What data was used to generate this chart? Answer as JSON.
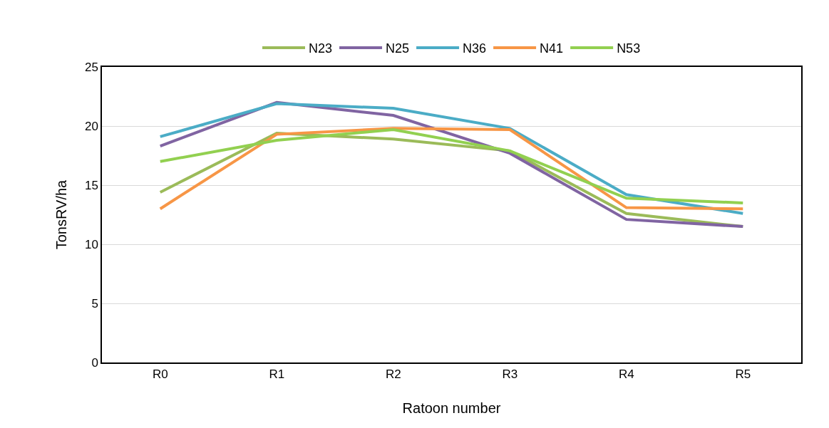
{
  "chart_data": {
    "type": "line",
    "xlabel": "Ratoon number",
    "ylabel": "TonsRV/ha",
    "categories": [
      "R0",
      "R1",
      "R2",
      "R3",
      "R4",
      "R5"
    ],
    "series": [
      {
        "name": "N23",
        "color": "#9bbb59",
        "values": [
          14.4,
          19.4,
          18.9,
          17.9,
          12.6,
          11.5
        ]
      },
      {
        "name": "N25",
        "color": "#8064a2",
        "values": [
          18.3,
          22.0,
          20.9,
          17.7,
          12.1,
          11.5
        ]
      },
      {
        "name": "N36",
        "color": "#4bacc6",
        "values": [
          19.1,
          21.9,
          21.5,
          19.8,
          14.2,
          12.6
        ]
      },
      {
        "name": "N41",
        "color": "#f79646",
        "values": [
          13.0,
          19.3,
          19.8,
          19.7,
          13.1,
          13.0
        ]
      },
      {
        "name": "N53",
        "color": "#92d050",
        "values": [
          17.0,
          18.8,
          19.7,
          17.9,
          13.9,
          13.5
        ]
      }
    ],
    "ylim": [
      0,
      25
    ],
    "yticks": [
      0,
      5,
      10,
      15,
      20,
      25
    ],
    "grid": "y",
    "legend": "top",
    "marker": "none",
    "line_style": "solid"
  }
}
